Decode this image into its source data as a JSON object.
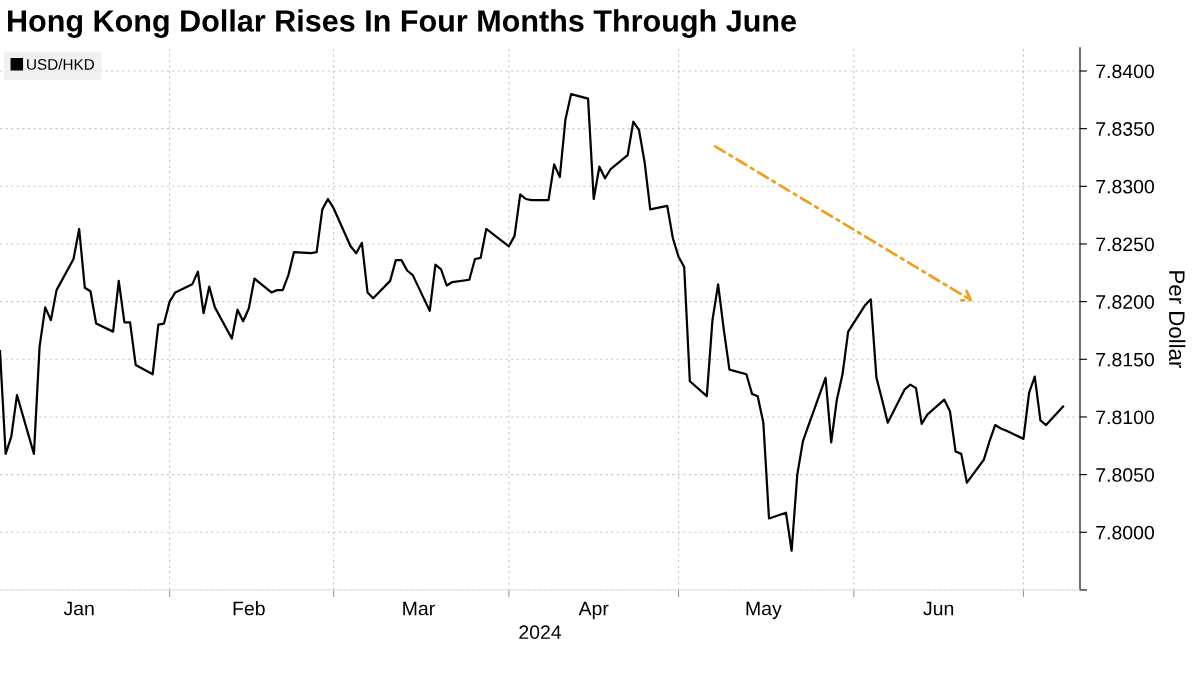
{
  "chart_data": {
    "type": "line",
    "title": "Hong Kong Dollar Rises In Four Months Through June",
    "xlabel": "2024",
    "ylabel": "Per Dollar",
    "x": [
      "2024-01-02",
      "2024-01-03",
      "2024-01-04",
      "2024-01-05",
      "2024-01-08",
      "2024-01-09",
      "2024-01-10",
      "2024-01-11",
      "2024-01-12",
      "2024-01-15",
      "2024-01-16",
      "2024-01-17",
      "2024-01-18",
      "2024-01-19",
      "2024-01-22",
      "2024-01-23",
      "2024-01-24",
      "2024-01-25",
      "2024-01-26",
      "2024-01-29",
      "2024-01-30",
      "2024-01-31",
      "2024-02-01",
      "2024-02-02",
      "2024-02-05",
      "2024-02-06",
      "2024-02-07",
      "2024-02-08",
      "2024-02-09",
      "2024-02-12",
      "2024-02-13",
      "2024-02-14",
      "2024-02-15",
      "2024-02-16",
      "2024-02-19",
      "2024-02-20",
      "2024-02-21",
      "2024-02-22",
      "2024-02-23",
      "2024-02-26",
      "2024-02-27",
      "2024-02-28",
      "2024-02-29",
      "2024-03-01",
      "2024-03-04",
      "2024-03-05",
      "2024-03-06",
      "2024-03-07",
      "2024-03-08",
      "2024-03-11",
      "2024-03-12",
      "2024-03-13",
      "2024-03-14",
      "2024-03-15",
      "2024-03-18",
      "2024-03-19",
      "2024-03-20",
      "2024-03-21",
      "2024-03-22",
      "2024-03-25",
      "2024-03-26",
      "2024-03-27",
      "2024-03-28",
      "2024-04-01",
      "2024-04-02",
      "2024-04-03",
      "2024-04-04",
      "2024-04-05",
      "2024-04-08",
      "2024-04-09",
      "2024-04-10",
      "2024-04-11",
      "2024-04-12",
      "2024-04-15",
      "2024-04-16",
      "2024-04-17",
      "2024-04-18",
      "2024-04-19",
      "2024-04-22",
      "2024-04-23",
      "2024-04-24",
      "2024-04-25",
      "2024-04-26",
      "2024-04-29",
      "2024-04-30",
      "2024-05-01",
      "2024-05-02",
      "2024-05-03",
      "2024-05-06",
      "2024-05-07",
      "2024-05-08",
      "2024-05-09",
      "2024-05-10",
      "2024-05-13",
      "2024-05-14",
      "2024-05-15",
      "2024-05-16",
      "2024-05-17",
      "2024-05-20",
      "2024-05-21",
      "2024-05-22",
      "2024-05-23",
      "2024-05-24",
      "2024-05-27",
      "2024-05-28",
      "2024-05-29",
      "2024-05-30",
      "2024-05-31",
      "2024-06-03",
      "2024-06-04",
      "2024-06-05",
      "2024-06-06",
      "2024-06-07",
      "2024-06-10",
      "2024-06-11",
      "2024-06-12",
      "2024-06-13",
      "2024-06-14",
      "2024-06-17",
      "2024-06-18",
      "2024-06-19",
      "2024-06-20",
      "2024-06-21",
      "2024-06-24",
      "2024-06-25",
      "2024-06-26",
      "2024-06-27",
      "2024-06-28",
      "2024-07-01",
      "2024-07-02",
      "2024-07-03",
      "2024-07-04",
      "2024-07-05",
      "2024-07-08"
    ],
    "series": [
      {
        "name": "USD/HKD",
        "color": "#000000",
        "values": [
          7.8157,
          7.8068,
          7.8083,
          7.8119,
          7.8068,
          7.8161,
          7.8195,
          7.8184,
          7.821,
          7.8237,
          7.8263,
          7.8212,
          7.8209,
          7.8181,
          7.8174,
          7.8218,
          7.8182,
          7.8182,
          7.8145,
          7.8137,
          7.818,
          7.8181,
          7.82,
          7.8208,
          7.8215,
          7.8226,
          7.819,
          7.8213,
          7.8195,
          7.8168,
          7.8193,
          7.8183,
          7.8194,
          7.822,
          7.8208,
          7.821,
          7.821,
          7.8223,
          7.8243,
          7.8242,
          7.8243,
          7.828,
          7.8289,
          7.8281,
          7.8248,
          7.8242,
          7.8251,
          7.8208,
          7.8203,
          7.8218,
          7.8236,
          7.8236,
          7.8227,
          7.8223,
          7.8192,
          7.8232,
          7.8228,
          7.8214,
          7.8217,
          7.8219,
          7.8237,
          7.8238,
          7.8263,
          7.8248,
          7.8257,
          7.8293,
          7.8289,
          7.8288,
          7.8288,
          7.8319,
          7.8308,
          7.8358,
          7.838,
          7.8376,
          7.8289,
          7.8317,
          7.8307,
          7.8315,
          7.8327,
          7.8356,
          7.8349,
          7.8321,
          7.828,
          7.8283,
          7.8255,
          7.8239,
          7.823,
          7.8131,
          7.8118,
          7.8184,
          7.8215,
          7.8176,
          7.8141,
          7.8137,
          7.812,
          7.8118,
          7.8095,
          7.8012,
          7.8017,
          7.7984,
          7.805,
          7.8079,
          7.8093,
          7.8134,
          7.8078,
          7.8115,
          7.8137,
          7.8174,
          7.8197,
          7.8202,
          7.8134,
          7.8115,
          7.8095,
          7.8124,
          7.8128,
          7.8125,
          7.8094,
          7.8102,
          7.8115,
          7.8105,
          7.807,
          7.8068,
          7.8043,
          7.8063,
          7.8079,
          7.8093,
          7.809,
          7.8088,
          7.8081,
          7.8121,
          7.8135,
          7.8097,
          7.8093,
          7.8109
        ]
      }
    ],
    "xlim": [
      "2024-01-02",
      "2024-07-11"
    ],
    "xticks": [
      {
        "value": "2024-01-16",
        "label": "Jan"
      },
      {
        "value": "2024-02-01",
        "label": null
      },
      {
        "value": "2024-02-15",
        "label": "Feb"
      },
      {
        "value": "2024-03-01",
        "label": null
      },
      {
        "value": "2024-03-16",
        "label": "Mar"
      },
      {
        "value": "2024-04-01",
        "label": null
      },
      {
        "value": "2024-04-16",
        "label": "Apr"
      },
      {
        "value": "2024-05-01",
        "label": null
      },
      {
        "value": "2024-05-16",
        "label": "May"
      },
      {
        "value": "2024-06-01",
        "label": null
      },
      {
        "value": "2024-06-16",
        "label": "Jun"
      },
      {
        "value": "2024-07-01",
        "label": null
      }
    ],
    "ylim": [
      7.795,
      7.842
    ],
    "yticks": [
      {
        "value": 7.795,
        "label": null
      },
      {
        "value": 7.8,
        "label": "7.8000"
      },
      {
        "value": 7.805,
        "label": "7.8050"
      },
      {
        "value": 7.81,
        "label": "7.8100"
      },
      {
        "value": 7.815,
        "label": "7.8150"
      },
      {
        "value": 7.82,
        "label": "7.8200"
      },
      {
        "value": 7.825,
        "label": "7.8250"
      },
      {
        "value": 7.83,
        "label": "7.8300"
      },
      {
        "value": 7.835,
        "label": "7.8350"
      },
      {
        "value": 7.84,
        "label": "7.8400"
      }
    ],
    "grid": true,
    "legend": "top left",
    "line_style": "solid",
    "marker": "none"
  }
}
